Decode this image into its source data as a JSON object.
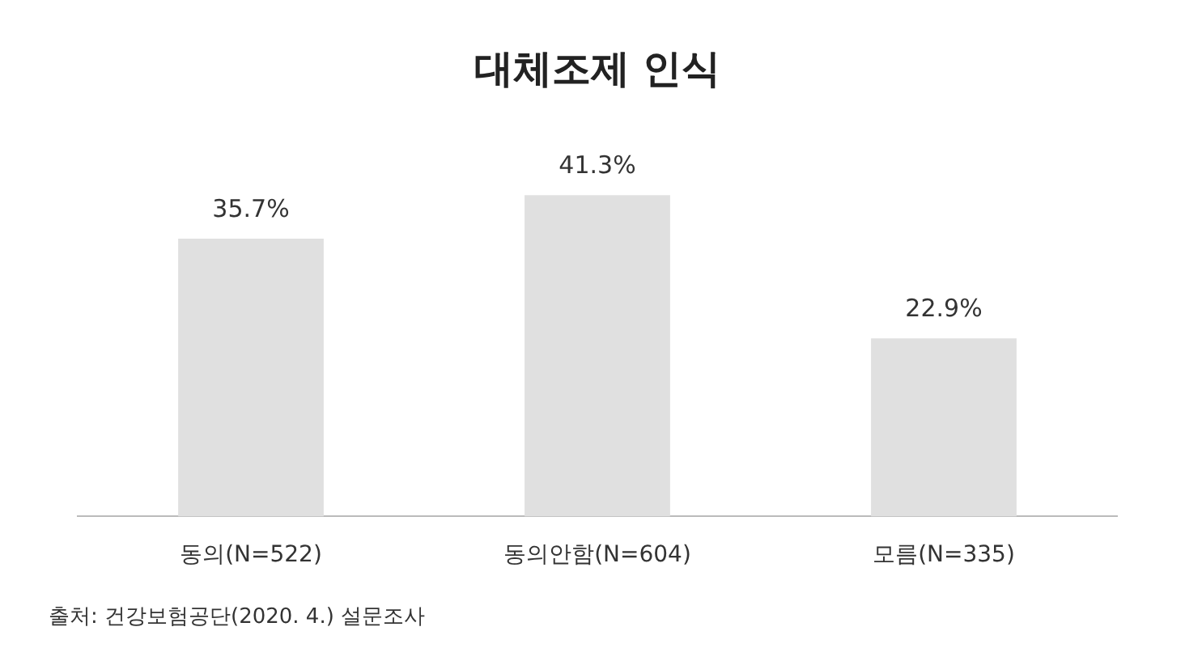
{
  "chart_data": {
    "type": "bar",
    "title": "대체조제 인식",
    "categories": [
      "동의(N=522)",
      "동의안함(N=604)",
      "모름(N=335)"
    ],
    "values": [
      35.7,
      41.3,
      22.9
    ],
    "value_labels": [
      "35.7%",
      "41.3%",
      "22.9%"
    ],
    "color": "#e0e0e0",
    "annotations": [
      "출처: 건강보험공단(2020. 4.) 설문조사"
    ]
  }
}
